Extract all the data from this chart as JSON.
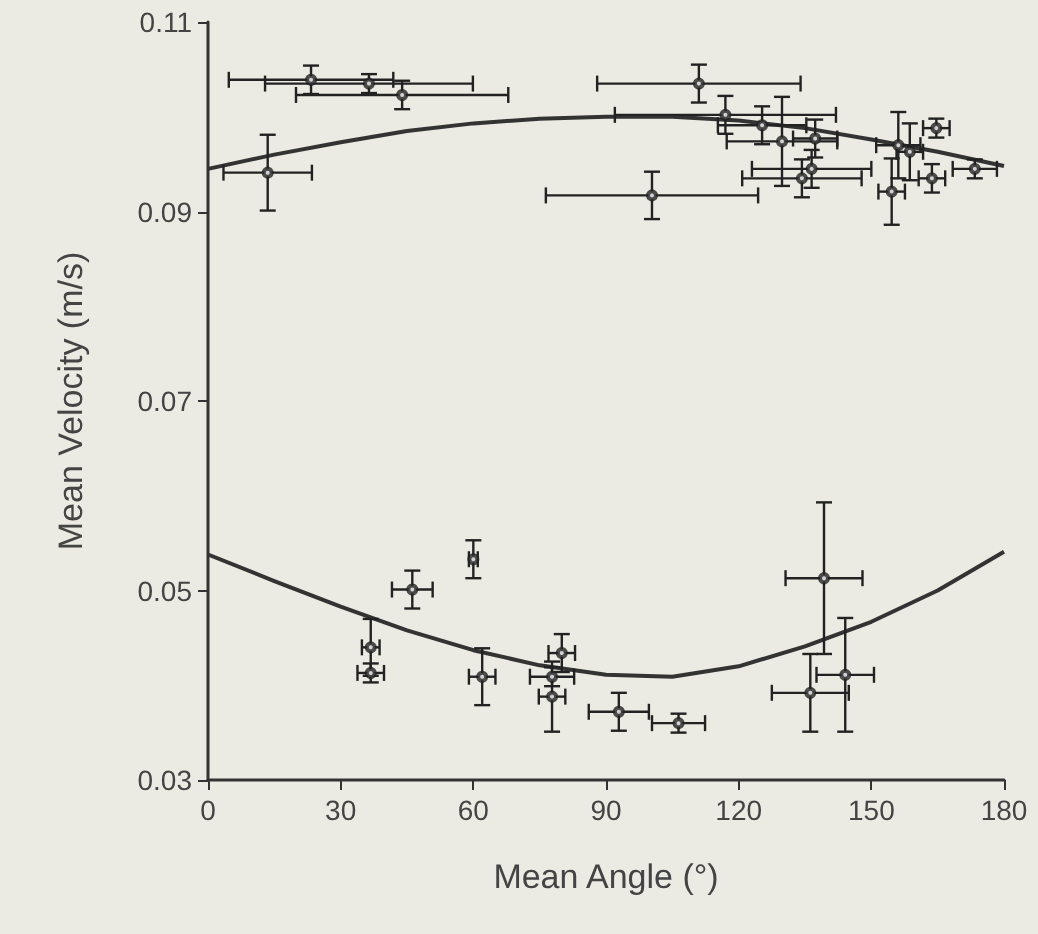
{
  "chart_data": {
    "type": "scatter",
    "xlabel": "Mean Angle (°)",
    "ylabel": "Mean Velocity (m/s)",
    "xlim": [
      0,
      180
    ],
    "xticks": [
      0,
      30,
      60,
      90,
      120,
      150,
      180
    ],
    "ylim": [
      0.03,
      0.11
    ],
    "yticks": [
      0.03,
      0.05,
      0.07,
      0.09,
      0.11
    ],
    "grid": false,
    "marker": "circle",
    "series": [
      {
        "color": "#222222",
        "x": [
          13.5,
          23.3,
          36.4,
          43.9,
          100.4,
          111,
          117,
          125.3,
          129.8,
          137.3,
          134.3,
          136.5,
          154.6,
          156.1,
          158.7,
          164.7,
          163.7,
          173.4
        ],
        "values": [
          0.0941,
          0.1039,
          0.1035,
          0.1023,
          0.0917,
          0.1035,
          0.1002,
          0.0991,
          0.0974,
          0.0977,
          0.0935,
          0.0945,
          0.0921,
          0.097,
          0.0963,
          0.0988,
          0.0935,
          0.0945
        ],
        "errors": [
          0.004,
          0.0015,
          0.001,
          0.0015,
          0.0025,
          0.002,
          0.002,
          0.002,
          0.0047,
          0.002,
          0.002,
          0.002,
          0.0035,
          0.0035,
          0.003,
          0.001,
          0.0015,
          0.001
        ],
        "xerrors": [
          10,
          18.6,
          23.5,
          24,
          24,
          23,
          25,
          10,
          12.5,
          5,
          13.5,
          13.5,
          3,
          5,
          3,
          3,
          3,
          5
        ]
      },
      {
        "color": "#222222",
        "x": [
          36.8,
          36.8,
          46.2,
          60,
          62,
          80,
          77.8,
          77.8,
          92.9,
          106.4,
          139.3,
          136.2,
          144.1
        ],
        "values": [
          0.044,
          0.0413,
          0.0501,
          0.0533,
          0.0409,
          0.0434,
          0.0409,
          0.0388,
          0.0372,
          0.036,
          0.0513,
          0.0392,
          0.0411
        ],
        "errors": [
          0.003,
          0.001,
          0.002,
          0.002,
          0.003,
          0.002,
          0.001,
          0.0037,
          0.002,
          0.001,
          0.008,
          0.0041,
          0.006
        ],
        "xerrors": [
          2,
          3,
          4.6,
          1,
          3,
          3,
          5,
          3,
          6.8,
          6,
          8.7,
          8.7,
          6.5
        ]
      },
      {
        "type": "line",
        "color": "#333333",
        "marker": "none",
        "x": [
          0,
          15,
          30,
          45,
          60,
          75,
          90,
          105,
          120,
          135,
          150,
          165,
          180
        ],
        "values": [
          0.0945,
          0.096,
          0.0973,
          0.0985,
          0.0993,
          0.0998,
          0.1,
          0.1,
          0.0996,
          0.0988,
          0.0976,
          0.0963,
          0.0948
        ]
      },
      {
        "type": "line",
        "color": "#333333",
        "marker": "none",
        "x": [
          0,
          15,
          30,
          45,
          60,
          75,
          90,
          105,
          120,
          135,
          150,
          165,
          180
        ],
        "values": [
          0.0538,
          0.051,
          0.0483,
          0.0458,
          0.0437,
          0.0421,
          0.0411,
          0.0409,
          0.042,
          0.0441,
          0.0467,
          0.05,
          0.0541
        ]
      }
    ]
  }
}
